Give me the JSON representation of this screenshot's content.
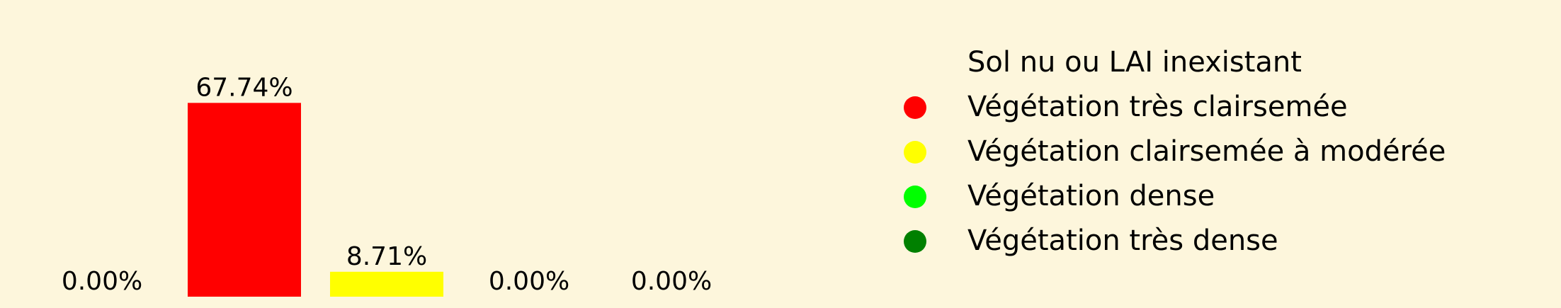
{
  "chart_data": {
    "type": "bar",
    "categories": [
      "Sol nu ou LAI inexistant",
      "Végétation très clairsemée",
      "Végétation clairsemée à modérée",
      "Végétation dense",
      "Végétation très dense"
    ],
    "values": [
      0.0,
      67.74,
      8.71,
      0.0,
      0.0
    ],
    "value_labels": [
      "0.00%",
      "67.74%",
      "8.71%",
      "0.00%",
      "0.00%"
    ],
    "colors": [
      "#fdf6dc",
      "#ff0000",
      "#ffff00",
      "#00ff00",
      "#008000"
    ],
    "ylim": [
      0,
      100
    ],
    "grid": false,
    "axes_visible": false,
    "legend_position": "right",
    "background": "#fdf6dc"
  },
  "legend": {
    "items": [
      {
        "label": "Sol nu ou LAI inexistant",
        "color": "#fdf6dc"
      },
      {
        "label": "Végétation très clairsemée",
        "color": "#ff0000"
      },
      {
        "label": "Végétation clairsemée à modérée",
        "color": "#ffff00"
      },
      {
        "label": "Végétation dense",
        "color": "#00ff00"
      },
      {
        "label": "Végétation très dense",
        "color": "#008000"
      }
    ]
  }
}
